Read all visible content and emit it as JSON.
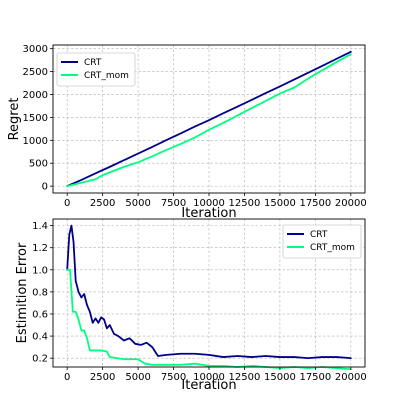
{
  "colors": {
    "crt": "#00008b",
    "crt_mom": "#00ff7f",
    "grid": "#b0b0b0"
  },
  "chart_data": [
    {
      "type": "line",
      "title": "",
      "xlabel": "Iteration",
      "ylabel": "Regret",
      "xlim": [
        -1000,
        21000
      ],
      "ylim": [
        -150,
        3080
      ],
      "xticks": [
        0,
        2500,
        5000,
        7500,
        10000,
        12500,
        15000,
        17500,
        20000
      ],
      "yticks": [
        0,
        500,
        1000,
        1500,
        2000,
        2500,
        3000
      ],
      "grid": true,
      "legend_position": "top-left",
      "series": [
        {
          "name": "CRT",
          "color": "#00008b",
          "x": [
            0,
            1000,
            2000,
            3000,
            4000,
            5000,
            6000,
            7000,
            8000,
            9000,
            10000,
            11000,
            12000,
            13000,
            14000,
            15000,
            16000,
            17000,
            18000,
            19000,
            20000
          ],
          "values": [
            0,
            135,
            280,
            420,
            565,
            710,
            855,
            1005,
            1150,
            1300,
            1440,
            1590,
            1735,
            1880,
            2030,
            2175,
            2325,
            2475,
            2625,
            2780,
            2930
          ]
        },
        {
          "name": "CRT_mom",
          "color": "#00ff7f",
          "x": [
            0,
            1000,
            2000,
            2500,
            3000,
            4000,
            5000,
            6000,
            7000,
            8000,
            9000,
            10000,
            11000,
            12000,
            13000,
            14000,
            15000,
            16000,
            17000,
            18000,
            19000,
            20000
          ],
          "values": [
            0,
            75,
            150,
            240,
            300,
            420,
            520,
            650,
            790,
            920,
            1060,
            1230,
            1380,
            1540,
            1700,
            1860,
            2020,
            2150,
            2350,
            2530,
            2710,
            2880
          ]
        }
      ]
    },
    {
      "type": "line",
      "title": "",
      "xlabel": "Iteration",
      "ylabel": "Estimition Error",
      "xlim": [
        -1000,
        21000
      ],
      "ylim": [
        0.12,
        1.46
      ],
      "xticks": [
        0,
        2500,
        5000,
        7500,
        10000,
        12500,
        15000,
        17500,
        20000
      ],
      "yticks": [
        0.2,
        0.4,
        0.6,
        0.8,
        1.0,
        1.2,
        1.4
      ],
      "grid": true,
      "legend_position": "top-right",
      "series": [
        {
          "name": "CRT",
          "color": "#00008b",
          "x": [
            0,
            150,
            300,
            450,
            600,
            800,
            1000,
            1200,
            1400,
            1600,
            1800,
            2000,
            2200,
            2400,
            2600,
            2800,
            3000,
            3300,
            3600,
            4000,
            4400,
            4800,
            5200,
            5600,
            6000,
            6400,
            7000,
            8000,
            9000,
            10000,
            11000,
            12000,
            13000,
            14000,
            15000,
            16000,
            17000,
            18000,
            19000,
            20000
          ],
          "values": [
            1.0,
            1.32,
            1.4,
            1.25,
            0.9,
            0.8,
            0.75,
            0.78,
            0.68,
            0.62,
            0.52,
            0.56,
            0.52,
            0.57,
            0.55,
            0.47,
            0.5,
            0.42,
            0.4,
            0.36,
            0.38,
            0.33,
            0.32,
            0.34,
            0.3,
            0.22,
            0.23,
            0.24,
            0.24,
            0.23,
            0.21,
            0.22,
            0.21,
            0.22,
            0.21,
            0.21,
            0.2,
            0.21,
            0.21,
            0.2
          ]
        },
        {
          "name": "CRT_mom",
          "color": "#00ff7f",
          "x": [
            0,
            200,
            400,
            600,
            800,
            1000,
            1200,
            1400,
            1600,
            1800,
            2000,
            2400,
            2800,
            3000,
            3500,
            4000,
            4500,
            5000,
            5500,
            6000,
            7000,
            8000,
            9000,
            10000,
            11000,
            12000,
            13000,
            14000,
            15000,
            16000,
            17000,
            18000,
            19000,
            20000
          ],
          "values": [
            1.0,
            1.0,
            0.62,
            0.62,
            0.55,
            0.45,
            0.45,
            0.38,
            0.27,
            0.27,
            0.27,
            0.27,
            0.26,
            0.21,
            0.2,
            0.19,
            0.19,
            0.19,
            0.15,
            0.14,
            0.14,
            0.14,
            0.15,
            0.13,
            0.13,
            0.12,
            0.13,
            0.12,
            0.11,
            0.12,
            0.11,
            0.12,
            0.11,
            0.1
          ]
        }
      ]
    }
  ]
}
